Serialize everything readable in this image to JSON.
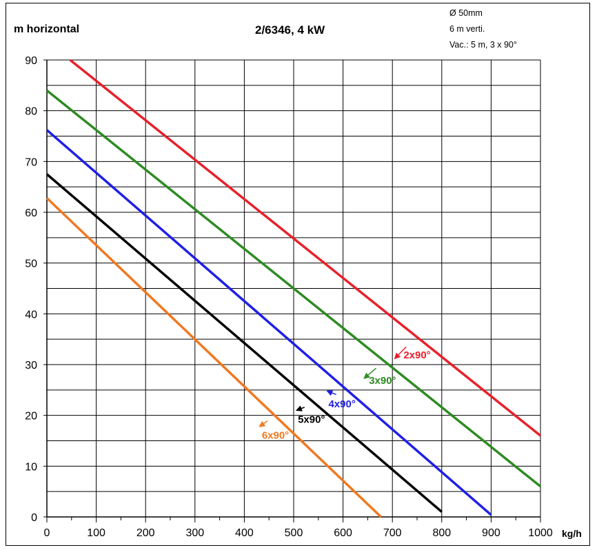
{
  "header": {
    "ylabel": "m horizontal",
    "title": "2/6346, 4 kW",
    "notes": [
      "Ø 50mm",
      "6 m verti.",
      "Vac.: 5 m, 3 x 90°"
    ],
    "x_unit": "kg/h"
  },
  "chart_data": {
    "type": "line",
    "title": "2/6346, 4 kW",
    "xlabel": "kg/h",
    "ylabel": "m horizontal",
    "xlim": [
      0,
      1000
    ],
    "ylim": [
      0,
      90
    ],
    "xticks": [
      0,
      100,
      200,
      300,
      400,
      500,
      600,
      700,
      800,
      900,
      1000
    ],
    "yticks": [
      0,
      10,
      20,
      30,
      40,
      50,
      60,
      70,
      80,
      90
    ],
    "grid": true,
    "legend": "none",
    "series": [
      {
        "name": "2x90°",
        "color": "#e8202a",
        "x": [
          47,
          1000
        ],
        "y": [
          90,
          16
        ]
      },
      {
        "name": "3x90°",
        "color": "#2e8b22",
        "x": [
          0,
          1000
        ],
        "y": [
          84,
          6
        ]
      },
      {
        "name": "4x90°",
        "color": "#1f1fe6",
        "x": [
          0,
          900
        ],
        "y": [
          76.2,
          0.4
        ]
      },
      {
        "name": "5x90°",
        "color": "#000000",
        "x": [
          0,
          800
        ],
        "y": [
          67.5,
          1
        ]
      },
      {
        "name": "6x90°",
        "color": "#f07820",
        "x": [
          0,
          677
        ],
        "y": [
          62.8,
          0
        ]
      }
    ],
    "annotations": [
      {
        "text": "2x90°",
        "color": "#e8202a",
        "label_at": [
          750,
          31.2
        ],
        "arrow_from": [
          728,
          33.5
        ],
        "arrow_to": [
          705,
          31.2
        ]
      },
      {
        "text": "3x90°",
        "color": "#2e8b22",
        "label_at": [
          680,
          26.2
        ],
        "arrow_from": [
          667,
          29.3
        ],
        "arrow_to": [
          643,
          27.3
        ]
      },
      {
        "text": "4x90°",
        "color": "#1f1fe6",
        "label_at": [
          598,
          21.6
        ],
        "arrow_from": [
          586,
          24.1
        ],
        "arrow_to": [
          568,
          24.8
        ]
      },
      {
        "text": "5x90°",
        "color": "#000000",
        "label_at": [
          536,
          18.5
        ],
        "arrow_from": [
          522,
          21.6
        ],
        "arrow_to": [
          506,
          21.0
        ]
      },
      {
        "text": "6x90°",
        "color": "#f07820",
        "label_at": [
          463,
          15.4
        ],
        "arrow_from": [
          447,
          18.9
        ],
        "arrow_to": [
          431,
          17.8
        ]
      }
    ]
  }
}
